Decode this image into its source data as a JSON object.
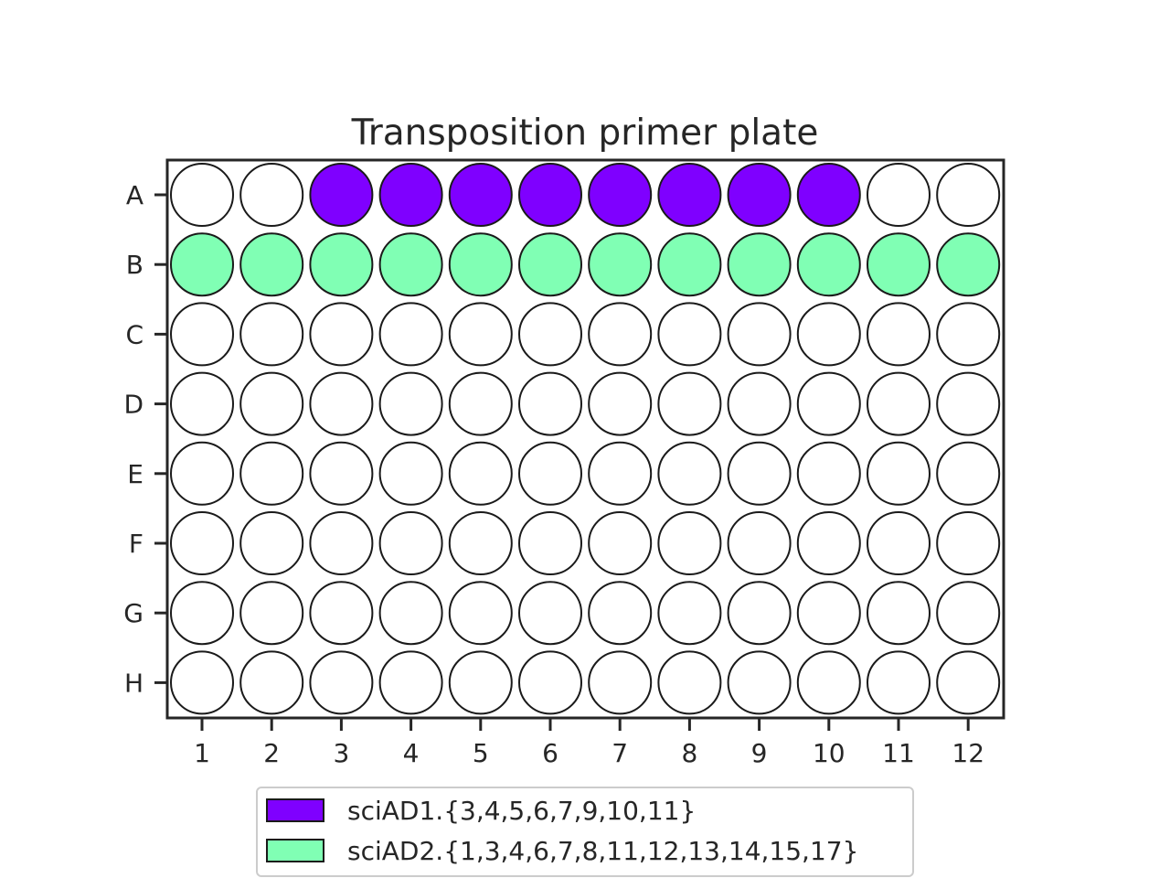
{
  "title": "Transposition primer plate",
  "rows": [
    "A",
    "B",
    "C",
    "D",
    "E",
    "F",
    "G",
    "H"
  ],
  "columns": [
    "1",
    "2",
    "3",
    "4",
    "5",
    "6",
    "7",
    "8",
    "9",
    "10",
    "11",
    "12"
  ],
  "colors": {
    "empty_well": "#ffffff",
    "well_outline": "#1a1a1a",
    "frame": "#262626"
  },
  "groups": [
    {
      "label": "sciAD1.{3,4,5,6,7,9,10,11}",
      "color": "#7f00ff",
      "wells": [
        "A3",
        "A4",
        "A5",
        "A6",
        "A7",
        "A8",
        "A9",
        "A10"
      ]
    },
    {
      "label": "sciAD2.{1,3,4,6,7,8,11,12,13,14,15,17}",
      "color": "#80ffb4",
      "wells": [
        "B1",
        "B2",
        "B3",
        "B4",
        "B5",
        "B6",
        "B7",
        "B8",
        "B9",
        "B10",
        "B11",
        "B12"
      ]
    }
  ],
  "legend_position": "below plot"
}
